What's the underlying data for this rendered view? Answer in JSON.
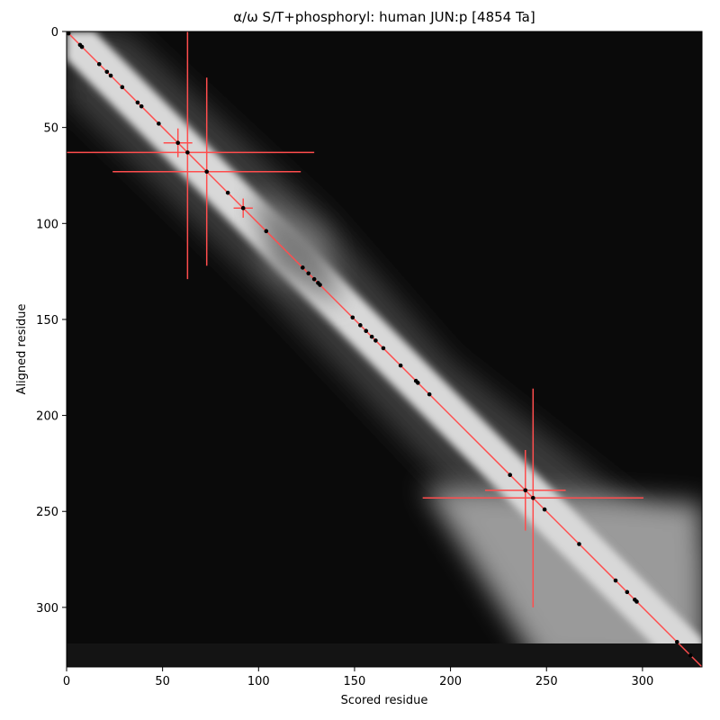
{
  "chart_data": {
    "type": "scatter",
    "title": "α/ω S/T+phosphoryl: human JUN:p [4854 Ta]",
    "x_label": "Scored residue",
    "y_label": "Aligned residue",
    "xlim": [
      0,
      331
    ],
    "ylim": [
      331,
      0
    ],
    "xticks": [
      0,
      50,
      100,
      150,
      200,
      250,
      300
    ],
    "yticks": [
      0,
      50,
      100,
      150,
      200,
      250,
      300
    ],
    "diagonal_color": "#ff4d4d",
    "points": {
      "color": "#000000",
      "x": [
        1,
        7,
        8,
        17,
        21,
        23,
        29,
        37,
        39,
        48,
        58,
        63,
        73,
        84,
        92,
        104,
        123,
        126,
        129,
        131,
        132,
        149,
        153,
        156,
        159,
        161,
        165,
        174,
        182,
        183,
        189,
        231,
        239,
        243,
        249,
        267,
        286,
        292,
        296,
        297,
        318,
        325
      ],
      "y": [
        1,
        7,
        8,
        17,
        21,
        23,
        29,
        37,
        39,
        48,
        58,
        63,
        73,
        84,
        92,
        104,
        123,
        126,
        129,
        131,
        132,
        149,
        153,
        156,
        159,
        161,
        165,
        174,
        182,
        183,
        189,
        231,
        239,
        243,
        249,
        267,
        286,
        292,
        296,
        297,
        318,
        325
      ]
    },
    "errorbars": {
      "color": "#ff4d4d",
      "x": [
        63,
        73,
        58,
        92,
        239,
        243
      ],
      "y": [
        63,
        73,
        58,
        92,
        239,
        243
      ],
      "xerr": [
        66,
        49,
        7.5,
        5,
        21,
        57.5
      ],
      "yerr": [
        66,
        49,
        7.5,
        5,
        21,
        57
      ]
    }
  }
}
